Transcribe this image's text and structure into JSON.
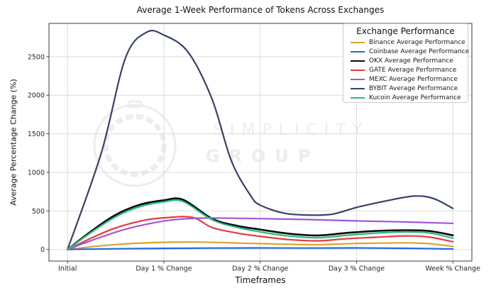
{
  "chart_data": {
    "type": "line",
    "title": "Average 1-Week Performance of Tokens Across Exchanges",
    "xlabel": "Timeframes",
    "ylabel": "Average Percentage Change (%)",
    "x_categories": [
      "Initial",
      "Day 1 % Change",
      "Day 2 % Change",
      "Day 3 % Change",
      "Week % Change"
    ],
    "y_ticks": [
      0,
      500,
      1000,
      1500,
      2000,
      2500
    ],
    "ylim": [
      -150,
      2930
    ],
    "grid": true,
    "legend": {
      "title": "Exchange Performance",
      "position": "upper-right"
    },
    "series": [
      {
        "name": "Binance Average Performance",
        "color": "#DBA428",
        "values": [
          0,
          95,
          76,
          78,
          40
        ],
        "curve": [
          [
            0,
            0
          ],
          [
            0.3,
            42
          ],
          [
            0.6,
            73
          ],
          [
            1.0,
            93
          ],
          [
            1.4,
            96
          ],
          [
            1.8,
            82
          ],
          [
            2.0,
            76
          ],
          [
            2.3,
            67
          ],
          [
            2.6,
            62
          ],
          [
            3.0,
            78
          ],
          [
            3.5,
            86
          ],
          [
            3.75,
            75
          ],
          [
            4.0,
            40
          ]
        ]
      },
      {
        "name": "Coinbase Average Performance",
        "color": "#2368E8",
        "values": [
          0,
          15,
          20,
          20,
          6
        ],
        "curve": [
          [
            0,
            0
          ],
          [
            0.5,
            9
          ],
          [
            1.0,
            15
          ],
          [
            1.5,
            18
          ],
          [
            2.0,
            20
          ],
          [
            2.5,
            18
          ],
          [
            3.0,
            20
          ],
          [
            3.5,
            16
          ],
          [
            4.0,
            6
          ]
        ]
      },
      {
        "name": "OKX Average Performance",
        "color": "#0a0a0a",
        "values": [
          0,
          640,
          258,
          230,
          184
        ],
        "curve": [
          [
            0,
            0
          ],
          [
            0.25,
            240
          ],
          [
            0.5,
            450
          ],
          [
            0.75,
            580
          ],
          [
            1.0,
            638
          ],
          [
            1.2,
            645
          ],
          [
            1.5,
            400
          ],
          [
            1.75,
            310
          ],
          [
            2.0,
            258
          ],
          [
            2.3,
            205
          ],
          [
            2.6,
            182
          ],
          [
            2.9,
            215
          ],
          [
            3.2,
            240
          ],
          [
            3.5,
            250
          ],
          [
            3.75,
            240
          ],
          [
            4.0,
            184
          ]
        ]
      },
      {
        "name": "GATE Average Performance",
        "color": "#E8393D",
        "values": [
          0,
          412,
          170,
          158,
          100
        ],
        "curve": [
          [
            0,
            0
          ],
          [
            0.25,
            150
          ],
          [
            0.5,
            280
          ],
          [
            0.8,
            380
          ],
          [
            1.05,
            415
          ],
          [
            1.3,
            415
          ],
          [
            1.5,
            285
          ],
          [
            1.75,
            215
          ],
          [
            2.0,
            170
          ],
          [
            2.3,
            128
          ],
          [
            2.6,
            112
          ],
          [
            2.9,
            140
          ],
          [
            3.2,
            158
          ],
          [
            3.5,
            176
          ],
          [
            3.75,
            162
          ],
          [
            4.0,
            100
          ]
        ]
      },
      {
        "name": "MEXC Average Performance",
        "color": "#A156D8",
        "values": [
          0,
          370,
          400,
          371,
          338
        ],
        "curve": [
          [
            0,
            0
          ],
          [
            0.3,
            140
          ],
          [
            0.6,
            262
          ],
          [
            0.9,
            348
          ],
          [
            1.1,
            385
          ],
          [
            1.4,
            407
          ],
          [
            1.8,
            404
          ],
          [
            2.0,
            400
          ],
          [
            2.5,
            388
          ],
          [
            3.0,
            371
          ],
          [
            3.5,
            357
          ],
          [
            4.0,
            338
          ]
        ]
      },
      {
        "name": "BYBIT Average Performance",
        "color": "#374268",
        "values": [
          0,
          2790,
          575,
          545,
          532
        ],
        "curve": [
          [
            0,
            0
          ],
          [
            0.35,
            1250
          ],
          [
            0.6,
            2480
          ],
          [
            0.82,
            2815
          ],
          [
            1.0,
            2780
          ],
          [
            1.25,
            2560
          ],
          [
            1.5,
            1950
          ],
          [
            1.7,
            1150
          ],
          [
            1.9,
            700
          ],
          [
            2.0,
            575
          ],
          [
            2.25,
            470
          ],
          [
            2.5,
            446
          ],
          [
            2.75,
            458
          ],
          [
            3.0,
            545
          ],
          [
            3.3,
            628
          ],
          [
            3.6,
            692
          ],
          [
            3.8,
            660
          ],
          [
            4.0,
            532
          ]
        ]
      },
      {
        "name": "Kucoin Average Performance",
        "color": "#26B982",
        "values": [
          0,
          618,
          228,
          200,
          148
        ],
        "curve": [
          [
            0,
            0
          ],
          [
            0.25,
            225
          ],
          [
            0.5,
            425
          ],
          [
            0.75,
            555
          ],
          [
            1.0,
            618
          ],
          [
            1.2,
            622
          ],
          [
            1.5,
            385
          ],
          [
            1.75,
            290
          ],
          [
            2.0,
            228
          ],
          [
            2.3,
            175
          ],
          [
            2.6,
            152
          ],
          [
            2.9,
            185
          ],
          [
            3.2,
            212
          ],
          [
            3.5,
            228
          ],
          [
            3.75,
            215
          ],
          [
            4.0,
            148
          ]
        ]
      }
    ],
    "watermark": {
      "line1": "SIMPLICITY",
      "line2": "GROUP",
      "color": "#efecee"
    }
  }
}
